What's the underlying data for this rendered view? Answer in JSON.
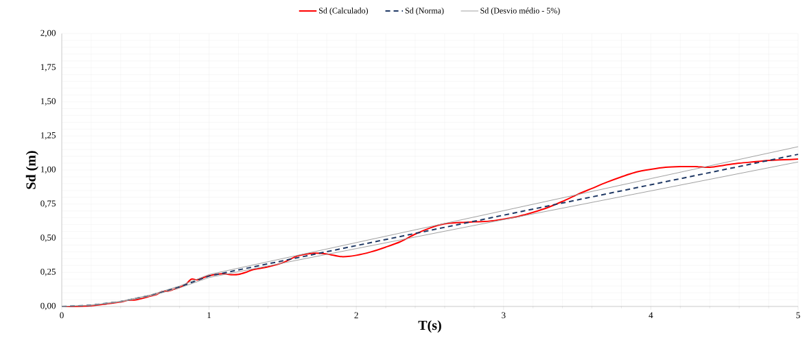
{
  "chart_data": {
    "type": "line",
    "xlabel": "T(s)",
    "ylabel": "Sd (m)",
    "xlim": [
      0,
      5
    ],
    "ylim": [
      0,
      2
    ],
    "xticks": [
      0,
      1,
      2,
      3,
      4,
      5
    ],
    "yticks": [
      {
        "value": 0,
        "label": "0,00"
      },
      {
        "value": 0.25,
        "label": "0,25"
      },
      {
        "value": 0.5,
        "label": "0,50"
      },
      {
        "value": 0.75,
        "label": "0,75"
      },
      {
        "value": 1,
        "label": "1,00"
      },
      {
        "value": 1.25,
        "label": "1,25"
      },
      {
        "value": 1.5,
        "label": "1,50"
      },
      {
        "value": 1.75,
        "label": "1,75"
      },
      {
        "value": 2,
        "label": "2,00"
      }
    ],
    "grid": true,
    "legend": "top",
    "marker": "none",
    "series": [
      {
        "name": "Sd (Calculado)",
        "color": "#ff0000",
        "line_style": "solid",
        "x": [
          0,
          0.1,
          0.2,
          0.3,
          0.4,
          0.45,
          0.5,
          0.55,
          0.6,
          0.65,
          0.68,
          0.72,
          0.76,
          0.8,
          0.84,
          0.88,
          0.92,
          0.96,
          1.0,
          1.05,
          1.1,
          1.15,
          1.2,
          1.25,
          1.3,
          1.4,
          1.5,
          1.6,
          1.7,
          1.8,
          1.9,
          2.0,
          2.1,
          2.2,
          2.3,
          2.4,
          2.5,
          2.6,
          2.7,
          2.8,
          2.9,
          3.0,
          3.1,
          3.2,
          3.3,
          3.4,
          3.5,
          3.6,
          3.7,
          3.8,
          3.9,
          4.0,
          4.1,
          4.2,
          4.3,
          4.4,
          4.5,
          4.6,
          4.7,
          4.8,
          4.9,
          5.0
        ],
        "values": [
          0,
          0,
          0.005,
          0.018,
          0.032,
          0.045,
          0.048,
          0.06,
          0.075,
          0.09,
          0.11,
          0.112,
          0.125,
          0.14,
          0.16,
          0.2,
          0.195,
          0.21,
          0.225,
          0.235,
          0.24,
          0.233,
          0.235,
          0.25,
          0.27,
          0.29,
          0.32,
          0.37,
          0.39,
          0.385,
          0.365,
          0.375,
          0.4,
          0.435,
          0.475,
          0.53,
          0.575,
          0.605,
          0.615,
          0.62,
          0.625,
          0.64,
          0.66,
          0.69,
          0.725,
          0.77,
          0.82,
          0.865,
          0.91,
          0.95,
          0.985,
          1.005,
          1.02,
          1.025,
          1.025,
          1.02,
          1.035,
          1.05,
          1.06,
          1.07,
          1.075,
          1.08
        ]
      },
      {
        "name": "Sd (Norma)",
        "color": "#1f3864",
        "line_style": "dashed",
        "x": [
          0,
          0.2,
          0.4,
          0.6,
          0.8,
          1.0,
          2.0,
          3.0,
          4.0,
          5.0
        ],
        "values": [
          0,
          0.009,
          0.036,
          0.08,
          0.143,
          0.223,
          0.446,
          0.669,
          0.892,
          1.115
        ]
      },
      {
        "name": "Sd (Desvio médio - 5%)",
        "color": "#a0a0a0",
        "line_style": "solid",
        "x": [
          0,
          0.2,
          0.4,
          0.6,
          0.8,
          1.0,
          2.0,
          3.0,
          4.0,
          5.0
        ],
        "values": [
          0,
          0.009,
          0.038,
          0.084,
          0.15,
          0.234,
          0.468,
          0.702,
          0.937,
          1.171
        ]
      },
      {
        "color": "#a0a0a0",
        "line_style": "solid",
        "x": [
          0,
          0.2,
          0.4,
          0.6,
          0.8,
          1.0,
          2.0,
          3.0,
          4.0,
          5.0
        ],
        "values": [
          0,
          0.009,
          0.034,
          0.076,
          0.136,
          0.212,
          0.424,
          0.636,
          0.847,
          1.059
        ]
      }
    ]
  }
}
